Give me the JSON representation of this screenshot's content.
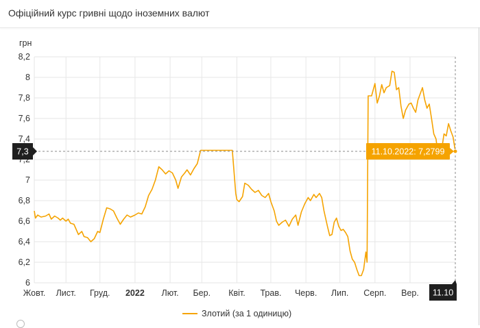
{
  "header": {
    "title": "Офіційний курс гривні щодо іноземних валют"
  },
  "colors": {
    "series": "#f5a300",
    "badge": "#1f1f1f",
    "tooltip": "#f5a300",
    "grid": "#e6e6e6"
  },
  "crosshair": {
    "y_badge": "7,3",
    "x_badge": "11.10",
    "tooltip": "11.10.2022: 7,2799",
    "value": 7.2799
  },
  "chart_data": {
    "type": "line",
    "title": "",
    "ylabel": "грн",
    "ylim": [
      6,
      8.2
    ],
    "y_ticks": [
      {
        "value": 8.2,
        "label": "8,2"
      },
      {
        "value": 8.0,
        "label": "8"
      },
      {
        "value": 7.8,
        "label": "7,8"
      },
      {
        "value": 7.6,
        "label": "7,6"
      },
      {
        "value": 7.4,
        "label": "7,4"
      },
      {
        "value": 7.2,
        "label": "7,2"
      },
      {
        "value": 7.0,
        "label": "7"
      },
      {
        "value": 6.8,
        "label": "6,8"
      },
      {
        "value": 6.6,
        "label": "6,6"
      },
      {
        "value": 6.4,
        "label": "6,4"
      },
      {
        "value": 6.2,
        "label": "6,2"
      },
      {
        "value": 6.0,
        "label": "6"
      }
    ],
    "xlim": [
      "2021-10-04",
      "2022-10-11"
    ],
    "x_ticks": [
      {
        "date": "2021-10-01",
        "label": "Жовт.",
        "bold": false
      },
      {
        "date": "2021-11-01",
        "label": "Лист.",
        "bold": false
      },
      {
        "date": "2021-12-01",
        "label": "Груд.",
        "bold": false
      },
      {
        "date": "2022-01-01",
        "label": "2022",
        "bold": true
      },
      {
        "date": "2022-02-01",
        "label": "Лют.",
        "bold": false
      },
      {
        "date": "2022-03-01",
        "label": "Бер.",
        "bold": false
      },
      {
        "date": "2022-04-01",
        "label": "Квіт.",
        "bold": false
      },
      {
        "date": "2022-05-01",
        "label": "Трав.",
        "bold": false
      },
      {
        "date": "2022-06-01",
        "label": "Черв.",
        "bold": false
      },
      {
        "date": "2022-07-01",
        "label": "Лип.",
        "bold": false
      },
      {
        "date": "2022-08-01",
        "label": "Серп.",
        "bold": false
      },
      {
        "date": "2022-09-01",
        "label": "Вер.",
        "bold": false
      }
    ],
    "grid": true,
    "legend_position": "bottom",
    "series": [
      {
        "name": "Злотий (за 1 одиницю)",
        "points": [
          [
            "2021-10-04",
            6.7
          ],
          [
            "2021-10-05",
            6.63
          ],
          [
            "2021-10-07",
            6.66
          ],
          [
            "2021-10-10",
            6.64
          ],
          [
            "2021-10-14",
            6.65
          ],
          [
            "2021-10-17",
            6.67
          ],
          [
            "2021-10-19",
            6.62
          ],
          [
            "2021-10-22",
            6.65
          ],
          [
            "2021-10-25",
            6.63
          ],
          [
            "2021-10-27",
            6.61
          ],
          [
            "2021-10-29",
            6.63
          ],
          [
            "2021-11-01",
            6.6
          ],
          [
            "2021-11-03",
            6.62
          ],
          [
            "2021-11-05",
            6.58
          ],
          [
            "2021-11-08",
            6.57
          ],
          [
            "2021-11-10",
            6.52
          ],
          [
            "2021-11-12",
            6.47
          ],
          [
            "2021-11-15",
            6.5
          ],
          [
            "2021-11-17",
            6.45
          ],
          [
            "2021-11-20",
            6.44
          ],
          [
            "2021-11-23",
            6.4
          ],
          [
            "2021-11-26",
            6.43
          ],
          [
            "2021-11-29",
            6.5
          ],
          [
            "2021-12-01",
            6.49
          ],
          [
            "2021-12-04",
            6.62
          ],
          [
            "2021-12-07",
            6.73
          ],
          [
            "2021-12-10",
            6.72
          ],
          [
            "2021-12-13",
            6.7
          ],
          [
            "2021-12-16",
            6.63
          ],
          [
            "2021-12-19",
            6.57
          ],
          [
            "2021-12-22",
            6.62
          ],
          [
            "2021-12-25",
            6.66
          ],
          [
            "2021-12-28",
            6.64
          ],
          [
            "2022-01-01",
            6.66
          ],
          [
            "2022-01-04",
            6.68
          ],
          [
            "2022-01-07",
            6.67
          ],
          [
            "2022-01-10",
            6.74
          ],
          [
            "2022-01-13",
            6.85
          ],
          [
            "2022-01-16",
            6.91
          ],
          [
            "2022-01-19",
            7.0
          ],
          [
            "2022-01-22",
            7.13
          ],
          [
            "2022-01-25",
            7.1
          ],
          [
            "2022-01-28",
            7.06
          ],
          [
            "2022-01-31",
            7.09
          ],
          [
            "2022-02-03",
            7.07
          ],
          [
            "2022-02-06",
            7.0
          ],
          [
            "2022-02-08",
            6.92
          ],
          [
            "2022-02-11",
            7.03
          ],
          [
            "2022-02-14",
            7.07
          ],
          [
            "2022-02-16",
            7.1
          ],
          [
            "2022-02-19",
            7.05
          ],
          [
            "2022-02-22",
            7.11
          ],
          [
            "2022-02-25",
            7.16
          ],
          [
            "2022-02-28",
            7.29
          ],
          [
            "2022-03-03",
            7.29
          ],
          [
            "2022-03-08",
            7.29
          ],
          [
            "2022-03-15",
            7.29
          ],
          [
            "2022-03-22",
            7.29
          ],
          [
            "2022-03-25",
            7.29
          ],
          [
            "2022-03-28",
            7.29
          ],
          [
            "2022-03-31",
            6.87
          ],
          [
            "2022-04-01",
            6.81
          ],
          [
            "2022-04-03",
            6.79
          ],
          [
            "2022-04-06",
            6.84
          ],
          [
            "2022-04-08",
            6.97
          ],
          [
            "2022-04-11",
            6.95
          ],
          [
            "2022-04-14",
            6.91
          ],
          [
            "2022-04-17",
            6.88
          ],
          [
            "2022-04-20",
            6.9
          ],
          [
            "2022-04-23",
            6.85
          ],
          [
            "2022-04-26",
            6.83
          ],
          [
            "2022-04-29",
            6.87
          ],
          [
            "2022-05-01",
            6.79
          ],
          [
            "2022-05-04",
            6.7
          ],
          [
            "2022-05-06",
            6.6
          ],
          [
            "2022-05-08",
            6.56
          ],
          [
            "2022-05-11",
            6.59
          ],
          [
            "2022-05-14",
            6.61
          ],
          [
            "2022-05-17",
            6.55
          ],
          [
            "2022-05-20",
            6.62
          ],
          [
            "2022-05-23",
            6.66
          ],
          [
            "2022-05-25",
            6.56
          ],
          [
            "2022-05-28",
            6.69
          ],
          [
            "2022-05-31",
            6.77
          ],
          [
            "2022-06-03",
            6.83
          ],
          [
            "2022-06-05",
            6.8
          ],
          [
            "2022-06-08",
            6.86
          ],
          [
            "2022-06-10",
            6.83
          ],
          [
            "2022-06-13",
            6.87
          ],
          [
            "2022-06-15",
            6.83
          ],
          [
            "2022-06-17",
            6.7
          ],
          [
            "2022-06-20",
            6.55
          ],
          [
            "2022-06-22",
            6.46
          ],
          [
            "2022-06-24",
            6.47
          ],
          [
            "2022-06-26",
            6.59
          ],
          [
            "2022-06-28",
            6.63
          ],
          [
            "2022-06-30",
            6.55
          ],
          [
            "2022-07-02",
            6.51
          ],
          [
            "2022-07-04",
            6.52
          ],
          [
            "2022-07-06",
            6.49
          ],
          [
            "2022-07-08",
            6.45
          ],
          [
            "2022-07-10",
            6.31
          ],
          [
            "2022-07-12",
            6.23
          ],
          [
            "2022-07-14",
            6.2
          ],
          [
            "2022-07-16",
            6.13
          ],
          [
            "2022-07-18",
            6.07
          ],
          [
            "2022-07-20",
            6.07
          ],
          [
            "2022-07-22",
            6.13
          ],
          [
            "2022-07-24",
            6.3
          ],
          [
            "2022-07-25",
            6.2
          ],
          [
            "2022-07-26",
            7.82
          ],
          [
            "2022-07-29",
            7.82
          ],
          [
            "2022-08-01",
            7.94
          ],
          [
            "2022-08-03",
            7.75
          ],
          [
            "2022-08-05",
            7.82
          ],
          [
            "2022-08-07",
            7.93
          ],
          [
            "2022-08-09",
            7.85
          ],
          [
            "2022-08-11",
            7.9
          ],
          [
            "2022-08-14",
            7.92
          ],
          [
            "2022-08-16",
            8.06
          ],
          [
            "2022-08-18",
            8.05
          ],
          [
            "2022-08-20",
            7.88
          ],
          [
            "2022-08-22",
            7.9
          ],
          [
            "2022-08-24",
            7.72
          ],
          [
            "2022-08-26",
            7.6
          ],
          [
            "2022-08-28",
            7.68
          ],
          [
            "2022-08-31",
            7.74
          ],
          [
            "2022-09-02",
            7.75
          ],
          [
            "2022-09-04",
            7.7
          ],
          [
            "2022-09-06",
            7.66
          ],
          [
            "2022-09-08",
            7.78
          ],
          [
            "2022-09-10",
            7.84
          ],
          [
            "2022-09-12",
            7.9
          ],
          [
            "2022-09-14",
            7.78
          ],
          [
            "2022-09-16",
            7.7
          ],
          [
            "2022-09-18",
            7.74
          ],
          [
            "2022-09-20",
            7.6
          ],
          [
            "2022-09-22",
            7.45
          ],
          [
            "2022-09-24",
            7.4
          ],
          [
            "2022-09-26",
            7.22
          ],
          [
            "2022-09-29",
            7.3
          ],
          [
            "2022-10-01",
            7.45
          ],
          [
            "2022-10-03",
            7.43
          ],
          [
            "2022-10-05",
            7.55
          ],
          [
            "2022-10-07",
            7.48
          ],
          [
            "2022-10-09",
            7.42
          ],
          [
            "2022-10-11",
            7.28
          ]
        ]
      }
    ]
  }
}
